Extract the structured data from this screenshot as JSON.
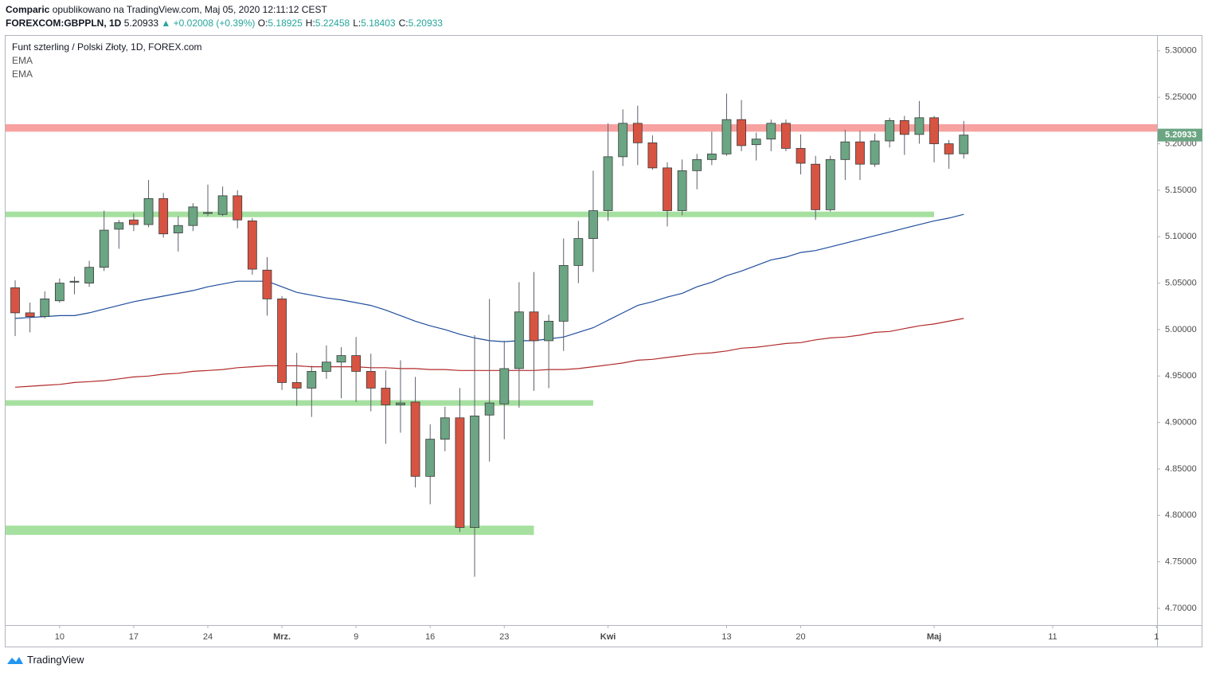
{
  "header": {
    "publisher": "Comparic",
    "published": "opublikowano na TradingView.com, Maj 05, 2020 12:11:12 CEST",
    "symbol": "FOREXCOM:GBPPLN, 1D",
    "price": "5.20933",
    "change": "▲ +0.02008 (+0.39%)",
    "ohlc": [
      {
        "label": "O:",
        "value": "5.18925"
      },
      {
        "label": "H:",
        "value": "5.22458"
      },
      {
        "label": "L:",
        "value": "5.18403"
      },
      {
        "label": "C:",
        "value": "5.20933"
      }
    ]
  },
  "chart_data": {
    "type": "candlestick",
    "title": "Funt szterling / Polski Złoty, 1D, FOREX.com",
    "up_color": "#6ba583",
    "down_color": "#d75442",
    "open": [
      5.045,
      5.018,
      5.014,
      5.031,
      5.051,
      5.05,
      5.067,
      5.108,
      5.118,
      5.113,
      5.141,
      5.104,
      5.112,
      5.125,
      5.124,
      5.144,
      5.117,
      5.064,
      5.033,
      4.943,
      4.937,
      4.955,
      4.965,
      4.972,
      4.955,
      4.937,
      4.919,
      4.922,
      4.842,
      4.882,
      4.905,
      4.787,
      4.908,
      4.92,
      4.958,
      5.019,
      4.988,
      5.009,
      5.069,
      5.098,
      5.128,
      5.186,
      5.222,
      5.201,
      5.174,
      5.128,
      5.171,
      5.183,
      5.189,
      5.226,
      5.199,
      5.205,
      5.222,
      5.195,
      5.178,
      5.129,
      5.183,
      5.202,
      5.178,
      5.203,
      5.225,
      5.21,
      5.228,
      5.2,
      5.18925
    ],
    "high": [
      5.053,
      5.029,
      5.041,
      5.055,
      5.057,
      5.074,
      5.128,
      5.118,
      5.125,
      5.161,
      5.147,
      5.122,
      5.136,
      5.156,
      5.154,
      5.15,
      5.12,
      5.078,
      5.036,
      4.975,
      4.961,
      4.983,
      4.981,
      4.992,
      4.974,
      4.956,
      4.967,
      4.949,
      4.898,
      4.917,
      4.937,
      4.994,
      5.033,
      4.988,
      5.051,
      5.062,
      5.016,
      5.098,
      5.117,
      5.171,
      5.222,
      5.237,
      5.241,
      5.209,
      5.18,
      5.183,
      5.189,
      5.213,
      5.254,
      5.247,
      5.212,
      5.226,
      5.226,
      5.21,
      5.187,
      5.187,
      5.215,
      5.214,
      5.211,
      5.228,
      5.23,
      5.246,
      5.23,
      5.204,
      5.22458
    ],
    "low": [
      4.993,
      4.997,
      5.012,
      5.029,
      5.038,
      5.046,
      5.063,
      5.087,
      5.106,
      5.11,
      5.099,
      5.084,
      5.106,
      5.122,
      5.122,
      5.109,
      5.059,
      5.015,
      4.935,
      4.918,
      4.906,
      4.947,
      4.926,
      4.922,
      4.912,
      4.877,
      4.889,
      4.83,
      4.812,
      4.869,
      4.782,
      4.734,
      4.858,
      4.882,
      4.916,
      4.934,
      4.937,
      4.977,
      5.05,
      5.062,
      5.117,
      5.176,
      5.177,
      5.172,
      5.111,
      5.123,
      5.151,
      5.177,
      5.187,
      5.192,
      5.182,
      5.192,
      5.192,
      5.167,
      5.118,
      5.127,
      5.161,
      5.161,
      5.175,
      5.196,
      5.188,
      5.2,
      5.18,
      5.173,
      5.18403
    ],
    "close": [
      5.018,
      5.014,
      5.033,
      5.05,
      5.052,
      5.067,
      5.107,
      5.115,
      5.113,
      5.141,
      5.103,
      5.112,
      5.132,
      5.126,
      5.144,
      5.118,
      5.065,
      5.033,
      4.943,
      4.937,
      4.955,
      4.965,
      4.972,
      4.955,
      4.937,
      4.919,
      4.921,
      4.842,
      4.882,
      4.905,
      4.787,
      4.907,
      4.921,
      4.958,
      5.019,
      4.988,
      5.009,
      5.069,
      5.098,
      5.128,
      5.186,
      5.222,
      5.201,
      5.174,
      5.128,
      5.171,
      5.183,
      5.189,
      5.226,
      5.198,
      5.205,
      5.222,
      5.195,
      5.179,
      5.129,
      5.183,
      5.202,
      5.178,
      5.203,
      5.225,
      5.21,
      5.228,
      5.2,
      5.189,
      5.20933
    ],
    "series": [
      {
        "name": "EMA",
        "color": "#1f4e9c",
        "values": [
          5.012,
          5.013,
          5.014,
          5.015,
          5.015,
          5.018,
          5.022,
          5.026,
          5.03,
          5.033,
          5.036,
          5.039,
          5.042,
          5.046,
          5.049,
          5.052,
          5.052,
          5.052,
          5.046,
          5.04,
          5.037,
          5.034,
          5.032,
          5.029,
          5.026,
          5.021,
          5.015,
          5.009,
          5.004,
          5.0,
          4.995,
          4.991,
          4.988,
          4.987,
          4.988,
          4.988,
          4.99,
          4.992,
          4.997,
          5.002,
          5.01,
          5.018,
          5.026,
          5.03,
          5.035,
          5.039,
          5.046,
          5.051,
          5.058,
          5.063,
          5.069,
          5.075,
          5.078,
          5.083,
          5.085,
          5.089,
          5.093,
          5.097,
          5.101,
          5.105,
          5.109,
          5.113,
          5.117,
          5.12,
          5.124
        ]
      },
      {
        "name": "EMA",
        "color": "#b22a2a",
        "values": [
          4.938,
          4.939,
          4.94,
          4.941,
          4.943,
          4.944,
          4.945,
          4.947,
          4.949,
          4.95,
          4.952,
          4.953,
          4.955,
          4.956,
          4.957,
          4.959,
          4.96,
          4.961,
          4.961,
          4.961,
          4.96,
          4.96,
          4.96,
          4.96,
          4.959,
          4.959,
          4.958,
          4.958,
          4.957,
          4.957,
          4.956,
          4.956,
          4.956,
          4.956,
          4.956,
          4.956,
          4.957,
          4.957,
          4.958,
          4.96,
          4.962,
          4.964,
          4.967,
          4.968,
          4.97,
          4.972,
          4.974,
          4.975,
          4.977,
          4.98,
          4.981,
          4.983,
          4.985,
          4.986,
          4.989,
          4.991,
          4.992,
          4.994,
          4.997,
          4.998,
          5.001,
          5.004,
          5.006,
          5.009,
          5.012
        ]
      }
    ],
    "zones": [
      {
        "color": "#f7a1a1",
        "range": [
          5.213,
          5.221
        ]
      },
      {
        "color": "#a6e0a0",
        "range": [
          5.121,
          5.127
        ],
        "end": 62
      },
      {
        "color": "#a6e0a0",
        "range": [
          4.918,
          4.924
        ],
        "end": 39
      },
      {
        "color": "#a6e0a0",
        "range": [
          4.779,
          4.789
        ],
        "end": 35
      }
    ],
    "last_price_label": "5.20933",
    "xlim": [
      -0.7,
      77.04
    ],
    "xticks": [
      {
        "value": 3,
        "label": "10"
      },
      {
        "value": 8,
        "label": "17"
      },
      {
        "value": 13,
        "label": "24"
      },
      {
        "value": 18,
        "label": "Mrz."
      },
      {
        "value": 23,
        "label": "9"
      },
      {
        "value": 28,
        "label": "16"
      },
      {
        "value": 33,
        "label": "23"
      },
      {
        "value": 40,
        "label": "Kwi"
      },
      {
        "value": 48,
        "label": "13"
      },
      {
        "value": 53,
        "label": "20"
      },
      {
        "value": 62,
        "label": "Maj"
      },
      {
        "value": 70,
        "label": "11"
      },
      {
        "value": 77,
        "label": "1"
      }
    ],
    "ylim": [
      4.682,
      5.317
    ],
    "yticks": [
      {
        "value": 4.7,
        "label": "4.70000"
      },
      {
        "value": 4.75,
        "label": "4.75000"
      },
      {
        "value": 4.8,
        "label": "4.80000"
      },
      {
        "value": 4.85,
        "label": "4.85000"
      },
      {
        "value": 4.9,
        "label": "4.90000"
      },
      {
        "value": 4.95,
        "label": "4.95000"
      },
      {
        "value": 5.0,
        "label": "5.00000"
      },
      {
        "value": 5.05,
        "label": "5.05000"
      },
      {
        "value": 5.1,
        "label": "5.10000"
      },
      {
        "value": 5.15,
        "label": "5.15000"
      },
      {
        "value": 5.2,
        "label": "5.20000"
      },
      {
        "value": 5.25,
        "label": "5.25000"
      },
      {
        "value": 5.3,
        "label": "5.30000"
      }
    ]
  },
  "footer": {
    "brand": "TradingView"
  }
}
